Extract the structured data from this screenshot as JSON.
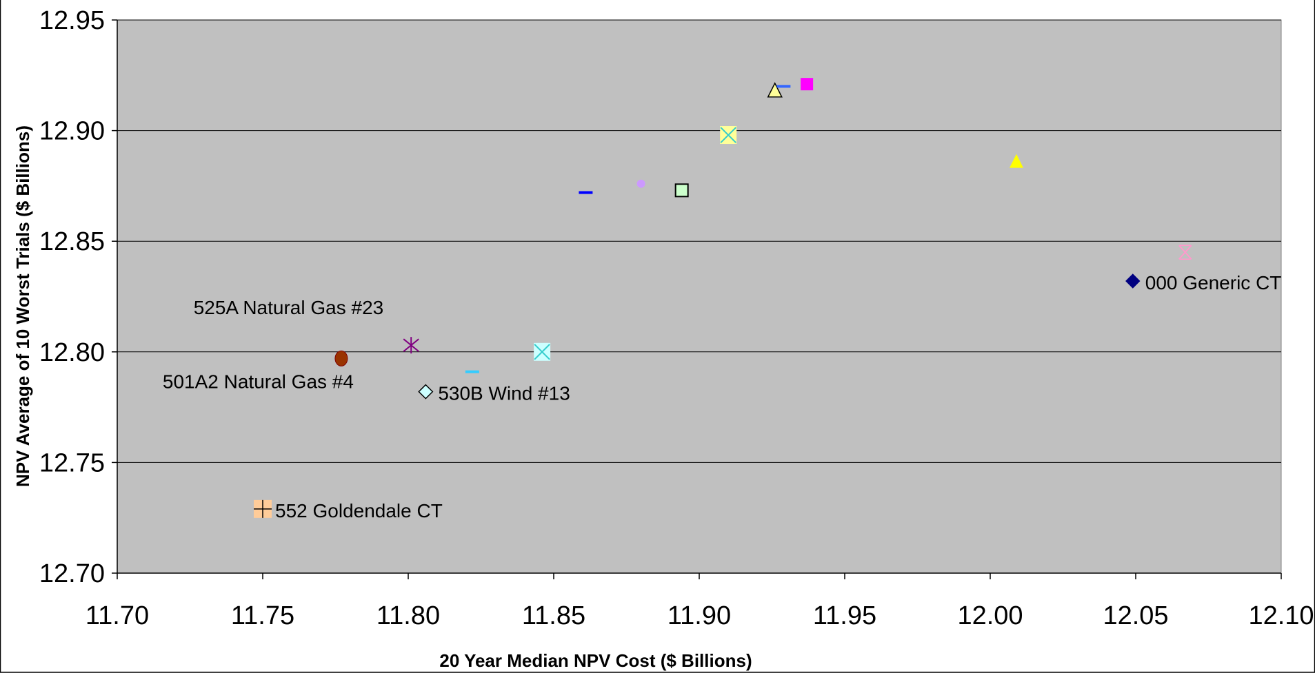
{
  "chart_data": {
    "type": "scatter",
    "xlabel": "20 Year Median NPV Cost ($ Billions)",
    "ylabel": "NPV Average of 10 Worst Trials ($ Billions)",
    "xlim": [
      11.7,
      12.1
    ],
    "ylim": [
      12.7,
      12.95
    ],
    "x_ticks": [
      "11.70",
      "11.75",
      "11.80",
      "11.85",
      "11.90",
      "11.95",
      "12.00",
      "12.05",
      "12.10"
    ],
    "y_ticks": [
      "12.70",
      "12.75",
      "12.80",
      "12.85",
      "12.90",
      "12.95"
    ],
    "grid": "horizontal",
    "plot_background": "#c0c0c0",
    "points": [
      {
        "x": 12.049,
        "y": 12.832,
        "marker": "diamond",
        "color": "#000080",
        "label": "000 Generic CT"
      },
      {
        "x": 11.75,
        "y": 12.729,
        "marker": "plus-box",
        "color": "#ffcc99",
        "label": "552 Goldendale CT"
      },
      {
        "x": 11.806,
        "y": 12.782,
        "marker": "diamond-open",
        "color": "#ccffff",
        "label": "530B Wind #13"
      },
      {
        "x": 11.777,
        "y": 12.797,
        "marker": "circle",
        "color": "#993300",
        "label": "501A2 Natural Gas #4"
      },
      {
        "x": 11.801,
        "y": 12.803,
        "marker": "asterisk",
        "color": "#800080",
        "label": "525A Natural Gas #23"
      },
      {
        "x": 11.822,
        "y": 12.791,
        "marker": "dash",
        "color": "#33ccff",
        "label": ""
      },
      {
        "x": 11.846,
        "y": 12.8,
        "marker": "x-box",
        "color": "#ccffff",
        "label": ""
      },
      {
        "x": 11.861,
        "y": 12.872,
        "marker": "dash",
        "color": "#0000ff",
        "label": ""
      },
      {
        "x": 11.88,
        "y": 12.876,
        "marker": "dot",
        "color": "#cc99ff",
        "label": ""
      },
      {
        "x": 11.894,
        "y": 12.873,
        "marker": "square-open",
        "color": "#ccffcc",
        "label": ""
      },
      {
        "x": 11.91,
        "y": 12.898,
        "marker": "x-box",
        "color": "#ffff99",
        "label": ""
      },
      {
        "x": 11.926,
        "y": 12.918,
        "marker": "triangle-open",
        "color": "#ffff99",
        "label": ""
      },
      {
        "x": 11.929,
        "y": 12.92,
        "marker": "dash",
        "color": "#3366ff",
        "label": ""
      },
      {
        "x": 11.937,
        "y": 12.921,
        "marker": "square",
        "color": "#ff00ff",
        "label": ""
      },
      {
        "x": 12.009,
        "y": 12.886,
        "marker": "triangle",
        "color": "#ffff00",
        "label": ""
      },
      {
        "x": 12.067,
        "y": 12.845,
        "marker": "x",
        "color": "#ff99cc",
        "label": ""
      }
    ]
  }
}
